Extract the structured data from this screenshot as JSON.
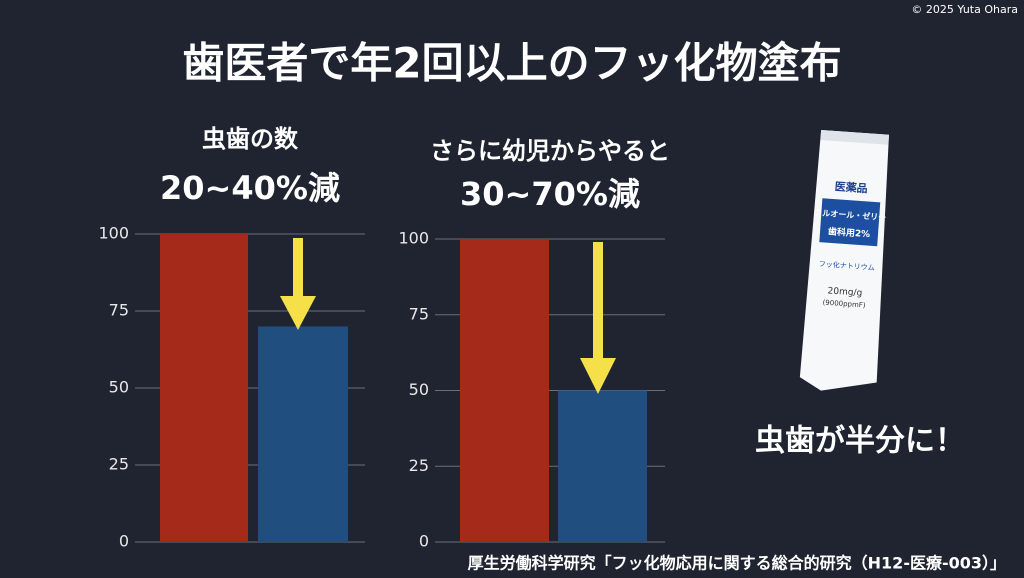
{
  "copyright": "© 2025 Yuta Ohara",
  "title": "歯医者で年2回以上のフッ化物塗布",
  "chart_data": [
    {
      "type": "bar",
      "title": "虫歯の数",
      "subtitle": "20~40%減",
      "values": [
        100,
        70
      ],
      "colors": [
        "#a52a1a",
        "#1f4e7f"
      ],
      "ylim": [
        0,
        100
      ],
      "yticks": [
        0,
        25,
        50,
        75,
        100
      ],
      "grid": true
    },
    {
      "type": "bar",
      "title": "さらに幼児からやると",
      "subtitle": "30~70%減",
      "values": [
        100,
        50
      ],
      "colors": [
        "#a52a1a",
        "#1f4e7f"
      ],
      "ylim": [
        0,
        100
      ],
      "yticks": [
        0,
        25,
        50,
        75,
        100
      ],
      "grid": true
    }
  ],
  "product": {
    "category": "医薬品",
    "name": "フルオール・ゼリー",
    "use": "歯科用2%",
    "ingredient": "フッ化ナトリウム",
    "strength": "20mg/g",
    "ppm": "(9000ppmF)"
  },
  "caption": "虫歯が半分に！",
  "source": "厚生労働科学研究「フッ化物応用に関する総合的研究（H12-医療-003）」"
}
